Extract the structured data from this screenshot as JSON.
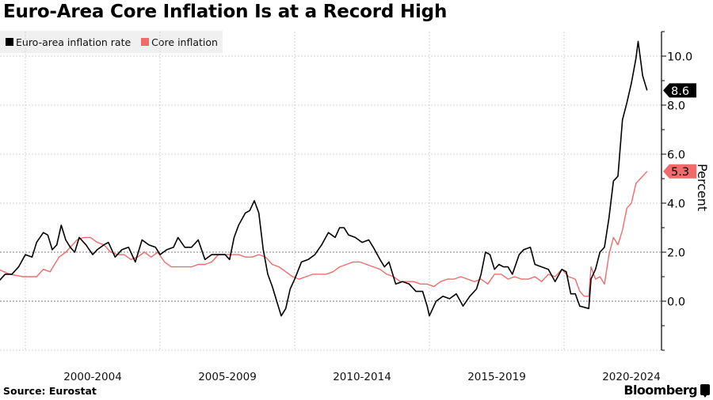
{
  "header": {
    "title": "Euro-Area Core Inflation Is at a Record High"
  },
  "footer": {
    "source": "Source: Eurostat",
    "brand": "Bloomberg"
  },
  "colors": {
    "headline": "#000000",
    "core": "#f26b6b",
    "grid": "#c8c8c8",
    "legend_bg": "#f0f0f0"
  },
  "chart_data": {
    "type": "line",
    "title": "Euro-Area Core Inflation Is at a Record High",
    "xlabel": "",
    "ylabel": "Percent",
    "x_start": "1999-01",
    "x_end": "2023-02",
    "frequency": "monthly",
    "x_tick_labels": [
      "2000-2004",
      "2005-2009",
      "2010-2014",
      "2015-2019",
      "2020-2024"
    ],
    "y_ticks": [
      0.0,
      2.0,
      4.0,
      6.0,
      8.0,
      10.0
    ],
    "y_tick_labels": [
      "0.0",
      "2.0",
      "4.0",
      "6.0",
      "8.0",
      "10.0"
    ],
    "ylim": [
      -2,
      11
    ],
    "grid": true,
    "legend_position": "top-left",
    "series": [
      {
        "name": "Euro-area inflation rate",
        "color": "#000000",
        "last_value_label": "8.6",
        "keypoints": [
          [
            "1999-01",
            0.8
          ],
          [
            "1999-04",
            1.1
          ],
          [
            "1999-07",
            1.1
          ],
          [
            "1999-10",
            1.4
          ],
          [
            "2000-01",
            1.9
          ],
          [
            "2000-04",
            1.8
          ],
          [
            "2000-06",
            2.4
          ],
          [
            "2000-09",
            2.8
          ],
          [
            "2000-11",
            2.7
          ],
          [
            "2001-01",
            2.1
          ],
          [
            "2001-03",
            2.3
          ],
          [
            "2001-05",
            3.1
          ],
          [
            "2001-07",
            2.5
          ],
          [
            "2001-09",
            2.2
          ],
          [
            "2001-11",
            2.0
          ],
          [
            "2002-01",
            2.6
          ],
          [
            "2002-04",
            2.3
          ],
          [
            "2002-07",
            1.9
          ],
          [
            "2002-09",
            2.1
          ],
          [
            "2002-12",
            2.3
          ],
          [
            "2003-02",
            2.4
          ],
          [
            "2003-05",
            1.8
          ],
          [
            "2003-08",
            2.1
          ],
          [
            "2003-11",
            2.2
          ],
          [
            "2004-02",
            1.6
          ],
          [
            "2004-05",
            2.5
          ],
          [
            "2004-08",
            2.3
          ],
          [
            "2004-11",
            2.2
          ],
          [
            "2005-01",
            1.9
          ],
          [
            "2005-04",
            2.1
          ],
          [
            "2005-07",
            2.2
          ],
          [
            "2005-09",
            2.6
          ],
          [
            "2005-12",
            2.2
          ],
          [
            "2006-03",
            2.2
          ],
          [
            "2006-06",
            2.5
          ],
          [
            "2006-09",
            1.7
          ],
          [
            "2006-12",
            1.9
          ],
          [
            "2007-03",
            1.9
          ],
          [
            "2007-06",
            1.9
          ],
          [
            "2007-08",
            1.7
          ],
          [
            "2007-10",
            2.6
          ],
          [
            "2007-12",
            3.1
          ],
          [
            "2008-03",
            3.6
          ],
          [
            "2008-05",
            3.7
          ],
          [
            "2008-07",
            4.1
          ],
          [
            "2008-09",
            3.6
          ],
          [
            "2008-11",
            2.1
          ],
          [
            "2009-01",
            1.1
          ],
          [
            "2009-03",
            0.6
          ],
          [
            "2009-05",
            0.0
          ],
          [
            "2009-07",
            -0.6
          ],
          [
            "2009-09",
            -0.3
          ],
          [
            "2009-11",
            0.5
          ],
          [
            "2010-01",
            0.9
          ],
          [
            "2010-04",
            1.6
          ],
          [
            "2010-07",
            1.7
          ],
          [
            "2010-10",
            1.9
          ],
          [
            "2011-01",
            2.3
          ],
          [
            "2011-04",
            2.8
          ],
          [
            "2011-07",
            2.6
          ],
          [
            "2011-09",
            3.0
          ],
          [
            "2011-11",
            3.0
          ],
          [
            "2012-01",
            2.7
          ],
          [
            "2012-04",
            2.6
          ],
          [
            "2012-07",
            2.4
          ],
          [
            "2012-10",
            2.5
          ],
          [
            "2012-12",
            2.2
          ],
          [
            "2013-03",
            1.7
          ],
          [
            "2013-05",
            1.4
          ],
          [
            "2013-07",
            1.6
          ],
          [
            "2013-10",
            0.7
          ],
          [
            "2014-01",
            0.8
          ],
          [
            "2014-04",
            0.7
          ],
          [
            "2014-07",
            0.4
          ],
          [
            "2014-10",
            0.4
          ],
          [
            "2014-12",
            -0.2
          ],
          [
            "2015-01",
            -0.6
          ],
          [
            "2015-04",
            0.0
          ],
          [
            "2015-07",
            0.2
          ],
          [
            "2015-10",
            0.1
          ],
          [
            "2016-01",
            0.3
          ],
          [
            "2016-04",
            -0.2
          ],
          [
            "2016-07",
            0.2
          ],
          [
            "2016-10",
            0.5
          ],
          [
            "2016-12",
            1.1
          ],
          [
            "2017-02",
            2.0
          ],
          [
            "2017-04",
            1.9
          ],
          [
            "2017-06",
            1.3
          ],
          [
            "2017-08",
            1.5
          ],
          [
            "2017-10",
            1.4
          ],
          [
            "2017-12",
            1.4
          ],
          [
            "2018-02",
            1.1
          ],
          [
            "2018-05",
            1.9
          ],
          [
            "2018-07",
            2.1
          ],
          [
            "2018-10",
            2.2
          ],
          [
            "2018-12",
            1.5
          ],
          [
            "2019-03",
            1.4
          ],
          [
            "2019-06",
            1.3
          ],
          [
            "2019-09",
            0.8
          ],
          [
            "2019-12",
            1.3
          ],
          [
            "2020-02",
            1.2
          ],
          [
            "2020-04",
            0.3
          ],
          [
            "2020-06",
            0.3
          ],
          [
            "2020-08",
            -0.2
          ],
          [
            "2020-12",
            -0.3
          ],
          [
            "2021-01",
            0.9
          ],
          [
            "2021-03",
            1.3
          ],
          [
            "2021-05",
            2.0
          ],
          [
            "2021-07",
            2.2
          ],
          [
            "2021-09",
            3.4
          ],
          [
            "2021-11",
            4.9
          ],
          [
            "2022-01",
            5.1
          ],
          [
            "2022-03",
            7.4
          ],
          [
            "2022-05",
            8.1
          ],
          [
            "2022-07",
            8.9
          ],
          [
            "2022-09",
            9.9
          ],
          [
            "2022-10",
            10.6
          ],
          [
            "2022-12",
            9.2
          ],
          [
            "2023-02",
            8.6
          ]
        ]
      },
      {
        "name": "Core inflation",
        "color": "#f26b6b",
        "last_value_label": "5.3",
        "keypoints": [
          [
            "1999-01",
            1.3
          ],
          [
            "1999-06",
            1.1
          ],
          [
            "1999-12",
            1.0
          ],
          [
            "2000-06",
            1.0
          ],
          [
            "2000-09",
            1.3
          ],
          [
            "2000-12",
            1.2
          ],
          [
            "2001-04",
            1.8
          ],
          [
            "2001-07",
            2.0
          ],
          [
            "2001-12",
            2.5
          ],
          [
            "2002-03",
            2.6
          ],
          [
            "2002-06",
            2.6
          ],
          [
            "2002-09",
            2.4
          ],
          [
            "2002-12",
            2.3
          ],
          [
            "2003-03",
            2.0
          ],
          [
            "2003-06",
            1.9
          ],
          [
            "2003-09",
            1.9
          ],
          [
            "2003-12",
            1.7
          ],
          [
            "2004-03",
            1.8
          ],
          [
            "2004-06",
            2.0
          ],
          [
            "2004-09",
            1.8
          ],
          [
            "2004-12",
            2.0
          ],
          [
            "2005-03",
            1.6
          ],
          [
            "2005-06",
            1.4
          ],
          [
            "2005-09",
            1.4
          ],
          [
            "2005-12",
            1.4
          ],
          [
            "2006-03",
            1.4
          ],
          [
            "2006-06",
            1.5
          ],
          [
            "2006-09",
            1.5
          ],
          [
            "2006-12",
            1.6
          ],
          [
            "2007-03",
            1.9
          ],
          [
            "2007-06",
            1.9
          ],
          [
            "2007-09",
            1.9
          ],
          [
            "2007-12",
            1.9
          ],
          [
            "2008-03",
            1.8
          ],
          [
            "2008-06",
            1.8
          ],
          [
            "2008-09",
            1.9
          ],
          [
            "2008-12",
            1.8
          ],
          [
            "2009-03",
            1.5
          ],
          [
            "2009-06",
            1.4
          ],
          [
            "2009-09",
            1.2
          ],
          [
            "2009-12",
            1.0
          ],
          [
            "2010-03",
            0.9
          ],
          [
            "2010-06",
            1.0
          ],
          [
            "2010-09",
            1.1
          ],
          [
            "2010-12",
            1.1
          ],
          [
            "2011-03",
            1.1
          ],
          [
            "2011-06",
            1.2
          ],
          [
            "2011-09",
            1.4
          ],
          [
            "2011-12",
            1.5
          ],
          [
            "2012-03",
            1.6
          ],
          [
            "2012-06",
            1.6
          ],
          [
            "2012-09",
            1.5
          ],
          [
            "2012-12",
            1.4
          ],
          [
            "2013-03",
            1.3
          ],
          [
            "2013-06",
            1.1
          ],
          [
            "2013-09",
            1.0
          ],
          [
            "2013-12",
            0.8
          ],
          [
            "2014-03",
            0.8
          ],
          [
            "2014-06",
            0.8
          ],
          [
            "2014-09",
            0.7
          ],
          [
            "2014-12",
            0.7
          ],
          [
            "2015-03",
            0.6
          ],
          [
            "2015-06",
            0.8
          ],
          [
            "2015-09",
            0.9
          ],
          [
            "2015-12",
            0.9
          ],
          [
            "2016-03",
            1.0
          ],
          [
            "2016-06",
            0.9
          ],
          [
            "2016-09",
            0.8
          ],
          [
            "2016-12",
            0.9
          ],
          [
            "2017-03",
            0.7
          ],
          [
            "2017-06",
            1.1
          ],
          [
            "2017-09",
            1.1
          ],
          [
            "2017-12",
            0.9
          ],
          [
            "2018-03",
            1.0
          ],
          [
            "2018-06",
            0.9
          ],
          [
            "2018-09",
            0.9
          ],
          [
            "2018-12",
            1.0
          ],
          [
            "2019-03",
            0.8
          ],
          [
            "2019-06",
            1.1
          ],
          [
            "2019-09",
            1.0
          ],
          [
            "2019-12",
            1.3
          ],
          [
            "2020-03",
            1.0
          ],
          [
            "2020-06",
            0.9
          ],
          [
            "2020-08",
            0.4
          ],
          [
            "2020-10",
            0.2
          ],
          [
            "2020-12",
            0.2
          ],
          [
            "2021-01",
            1.4
          ],
          [
            "2021-03",
            0.9
          ],
          [
            "2021-05",
            1.0
          ],
          [
            "2021-07",
            0.7
          ],
          [
            "2021-09",
            1.9
          ],
          [
            "2021-11",
            2.6
          ],
          [
            "2022-01",
            2.3
          ],
          [
            "2022-03",
            2.9
          ],
          [
            "2022-05",
            3.8
          ],
          [
            "2022-07",
            4.0
          ],
          [
            "2022-09",
            4.8
          ],
          [
            "2022-11",
            5.0
          ],
          [
            "2023-01",
            5.2
          ],
          [
            "2023-02",
            5.3
          ]
        ]
      }
    ]
  }
}
